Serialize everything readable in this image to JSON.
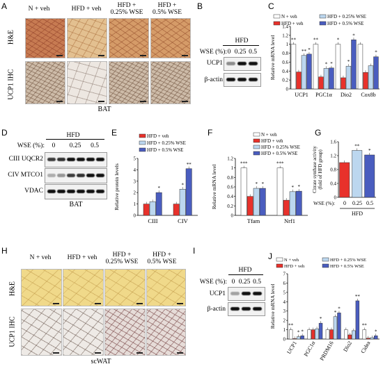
{
  "panels": {
    "A": {
      "label": "A",
      "columns": [
        "N + veh",
        "HFD + veh",
        "HFD +\n0.25% WSE",
        "HFD +\n0.5% WSE"
      ],
      "rows": [
        "H&E",
        "UCP1 IHC"
      ],
      "tissue": "BAT"
    },
    "B": {
      "label": "B",
      "group": "HFD",
      "wse_label": "WSE (%):",
      "doses": [
        "0",
        "0.25",
        "0.5"
      ],
      "proteins": [
        "UCP1",
        "β-actin"
      ]
    },
    "D": {
      "label": "D",
      "group": "HFD",
      "wse_label": "WSE (%):",
      "doses": [
        "0",
        "0.25",
        "0.5"
      ],
      "proteins": [
        "CIII UQCR2",
        "CIV MTCO1",
        "VDAC"
      ],
      "tissue": "BAT"
    },
    "H": {
      "label": "H",
      "columns": [
        "N + veh",
        "HFD + veh",
        "HFD +\n0.25% WSE",
        "HFD +\n0.5% WSE"
      ],
      "rows": [
        "H&E",
        "UCP1 IHC"
      ],
      "tissue": "scWAT"
    },
    "I": {
      "label": "I",
      "group": "HFD",
      "wse_label": "WSE (%):",
      "doses": [
        "0",
        "0.25",
        "0.5"
      ],
      "proteins": [
        "UCP1",
        "β-actin"
      ]
    }
  },
  "colors": {
    "n_veh": "#ffffff",
    "hfd_veh": "#e8312b",
    "hfd_025": "#bcd7ef",
    "hfd_05": "#4a5dbf"
  },
  "chart_data": [
    {
      "panel": "C",
      "type": "bar",
      "ylabel": "Relative mRNA level",
      "ylim": [
        0,
        1.4
      ],
      "yticks": [
        "0",
        "0.2",
        "0.4",
        "0.6",
        "0.8",
        "1",
        "1.2",
        "1.4"
      ],
      "categories": [
        "UCP1",
        "PGC1α",
        "Dio2",
        "Cox8b"
      ],
      "series": [
        {
          "name": "N + veh",
          "values": [
            1.0,
            1.0,
            1.0,
            1.0
          ]
        },
        {
          "name": "HFD + veh",
          "values": [
            0.38,
            0.27,
            0.25,
            0.37
          ]
        },
        {
          "name": "HFD + 0.25% WSE",
          "values": [
            0.75,
            0.46,
            0.51,
            0.52
          ]
        },
        {
          "name": "HFD + 0.5% WSE",
          "values": [
            0.78,
            0.47,
            1.1,
            0.72
          ]
        }
      ],
      "annotations": [
        [
          "**",
          "",
          "**",
          "*"
        ],
        [
          "**",
          "",
          "*",
          "*"
        ],
        [
          "*",
          "",
          "*",
          "*"
        ],
        [
          "",
          "",
          "",
          "*"
        ]
      ],
      "legend": "top"
    },
    {
      "panel": "E",
      "type": "bar",
      "ylabel": "Relative protein levels",
      "ylim": [
        0,
        5
      ],
      "yticks": [
        "0",
        "1",
        "2",
        "3",
        "4",
        "5"
      ],
      "categories": [
        "CIII",
        "CIV"
      ],
      "series": [
        {
          "name": "HFD + veh",
          "values": [
            1.0,
            1.0
          ]
        },
        {
          "name": "HFD + 0.25% WSE",
          "values": [
            1.2,
            2.3
          ]
        },
        {
          "name": "HFD + 0.5% WSE",
          "values": [
            2.0,
            4.1
          ]
        }
      ],
      "annotations": [
        [
          "",
          "",
          "*"
        ],
        [
          "",
          "*",
          "**"
        ]
      ],
      "legend": "top-left"
    },
    {
      "panel": "F",
      "type": "bar",
      "ylabel": "Relative mRNA level",
      "ylim": [
        0,
        1.2
      ],
      "yticks": [
        "0",
        "0.2",
        "0.4",
        "0.6",
        "0.8",
        "1",
        "1.2"
      ],
      "categories": [
        "Tfam",
        "Nrf1"
      ],
      "series": [
        {
          "name": "N + veh",
          "values": [
            1.0,
            1.0
          ]
        },
        {
          "name": "HFD + veh",
          "values": [
            0.4,
            0.32
          ]
        },
        {
          "name": "HFD + 0.25% WSE",
          "values": [
            0.57,
            0.5
          ]
        },
        {
          "name": "HFD + 0.5% WSE",
          "values": [
            0.57,
            0.51
          ]
        }
      ],
      "annotations": [
        [
          "***",
          "",
          "*",
          "*"
        ],
        [
          "***",
          "",
          "*",
          "*"
        ]
      ],
      "legend": "top"
    },
    {
      "panel": "G",
      "type": "bar",
      "ylabel": "Citrate synthase activity\n(fold of HFD group)",
      "ylim": [
        0,
        1.6
      ],
      "yticks": [
        "0",
        "0.4",
        "0.8",
        "1.2",
        "1.6"
      ],
      "xlabel": "WSE (%):",
      "categories": [
        "0",
        "0.25",
        "0.5"
      ],
      "group_label": "HFD",
      "series": [
        {
          "name": "",
          "values": [
            1.0,
            1.35,
            1.22
          ]
        }
      ],
      "annotations": [
        "",
        "**",
        "*"
      ]
    },
    {
      "panel": "J",
      "type": "bar",
      "ylabel": "Relative mRNA level",
      "ylim": [
        0,
        7
      ],
      "yticks": [
        "0",
        "1",
        "2",
        "3",
        "4",
        "5",
        "6",
        "7"
      ],
      "categories": [
        "UCP1",
        "PGC1α",
        "PRDM16",
        "Dio2",
        "Cidea"
      ],
      "series": [
        {
          "name": "N + veh",
          "values": [
            1.0,
            1.0,
            1.0,
            1.0,
            1.0
          ]
        },
        {
          "name": "HFD + veh",
          "values": [
            0.05,
            1.0,
            1.0,
            0.45,
            0.1
          ]
        },
        {
          "name": "HFD + 0.25% WSE",
          "values": [
            0.25,
            1.1,
            2.4,
            0.9,
            0.15
          ]
        },
        {
          "name": "HFD + 0.5% WSE",
          "values": [
            0.35,
            1.7,
            2.8,
            4.1,
            0.35
          ]
        }
      ],
      "annotations": [
        [
          "**",
          "",
          "*",
          "*"
        ],
        [
          "",
          "",
          "",
          "*"
        ],
        [
          "",
          "",
          "*",
          "*"
        ],
        [
          "",
          "",
          "",
          "**"
        ],
        [
          "**",
          "",
          "",
          "*"
        ]
      ],
      "legend": "top"
    }
  ]
}
